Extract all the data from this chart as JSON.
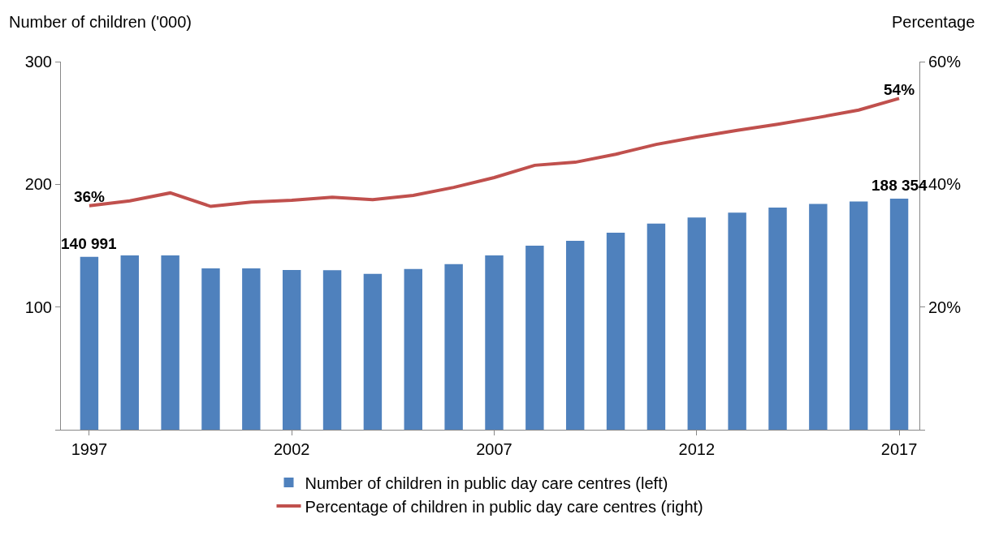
{
  "chart_data": {
    "type": "bar",
    "ylabel": "Number of children ('000)",
    "y2label": "Percentage",
    "x": [
      1997,
      1998,
      1999,
      2000,
      2001,
      2002,
      2003,
      2004,
      2005,
      2006,
      2007,
      2008,
      2009,
      2010,
      2011,
      2012,
      2013,
      2014,
      2015,
      2016,
      2017
    ],
    "series": [
      {
        "name": "Number of children in public day care centres (left)",
        "color": "#4f81bd",
        "values": [
          140.991,
          142,
          142,
          131.5,
          131.5,
          130.2,
          130,
          127,
          131,
          135,
          142,
          150,
          154,
          160.5,
          168,
          173,
          177,
          181,
          184,
          186,
          188.354
        ]
      },
      {
        "name": "Percentage of children in public day care centres (right)",
        "type": "line",
        "axis": "y2",
        "color": "#c0504d",
        "values": [
          36.5,
          37.3,
          38.6,
          36.4,
          37.1,
          37.4,
          37.9,
          37.5,
          38.2,
          39.5,
          41.1,
          43.1,
          43.6,
          44.9,
          46.5,
          47.7,
          48.8,
          49.8,
          50.9,
          52.1,
          54
        ],
        "value_labels": [
          "36%",
          null,
          null,
          null,
          null,
          null,
          null,
          null,
          null,
          null,
          null,
          null,
          null,
          null,
          null,
          null,
          null,
          null,
          null,
          null,
          "54%"
        ]
      }
    ],
    "xlim": [
      1996.3,
      2017.5
    ],
    "xticks": [
      1997,
      2002,
      2007,
      2012,
      2017
    ],
    "ylim": [
      0,
      300
    ],
    "yticks": [
      {
        "value": 0,
        "label": null
      },
      100,
      200,
      300
    ],
    "y2lim": [
      0,
      60
    ],
    "y2ticks": [
      {
        "value": 0,
        "label": null
      },
      {
        "value": 20,
        "label": "20%"
      },
      {
        "value": 40,
        "label": "40%"
      },
      {
        "value": 60,
        "label": "60%"
      }
    ],
    "annotations": [
      {
        "text": "140 991",
        "x": 1997,
        "y": 140.991
      },
      {
        "text": "188 354",
        "x": 2017,
        "y": 188.354
      }
    ],
    "grid": false,
    "legend": "bottom",
    "marker": "none",
    "line_style": "solid"
  }
}
